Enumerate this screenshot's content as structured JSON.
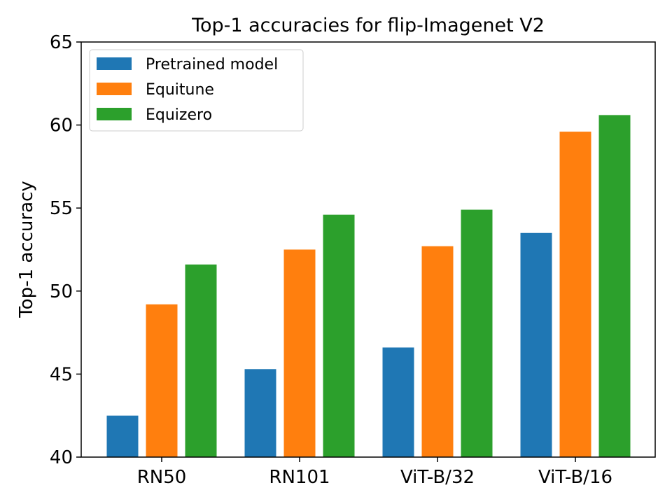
{
  "chart_data": {
    "type": "bar",
    "title": "Top-1 accuracies for flip-Imagenet V2",
    "xlabel": "",
    "ylabel": "Top-1 accuracy",
    "categories": [
      "RN50",
      "RN101",
      "ViT-B/32",
      "ViT-B/16"
    ],
    "ylim": [
      40,
      65
    ],
    "yticks": [
      40,
      45,
      50,
      55,
      60,
      65
    ],
    "series": [
      {
        "name": "Pretrained model",
        "color": "#1f77b4",
        "values": [
          42.5,
          45.3,
          46.6,
          53.5
        ]
      },
      {
        "name": "Equitune",
        "color": "#ff7f0e",
        "values": [
          49.2,
          52.5,
          52.7,
          59.6
        ]
      },
      {
        "name": "Equizero",
        "color": "#2ca02c",
        "values": [
          51.6,
          54.6,
          54.9,
          60.6
        ]
      }
    ],
    "legend_position": "top-left",
    "grid": false
  }
}
